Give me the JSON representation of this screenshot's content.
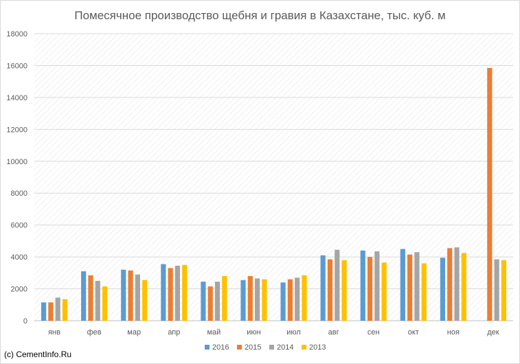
{
  "chart_data": {
    "type": "bar",
    "title": "Помесячное производство щебня и гравия в Казахстане, тыс. куб. м",
    "categories": [
      "янв",
      "фев",
      "мар",
      "апр",
      "май",
      "июн",
      "июл",
      "авг",
      "сен",
      "окт",
      "ноя",
      "дек"
    ],
    "series": [
      {
        "name": "2016",
        "color": "#5b9bd5",
        "values": [
          1150,
          3100,
          3200,
          3550,
          2450,
          2550,
          2400,
          4100,
          4400,
          4500,
          3950,
          null
        ]
      },
      {
        "name": "2015",
        "color": "#ed7d31",
        "values": [
          1150,
          2850,
          3150,
          3300,
          2150,
          2800,
          2600,
          3850,
          4000,
          4150,
          4550,
          15850
        ]
      },
      {
        "name": "2014",
        "color": "#a5a5a5",
        "values": [
          1450,
          2500,
          2900,
          3450,
          2450,
          2650,
          2700,
          4450,
          4350,
          4300,
          4600,
          3850
        ]
      },
      {
        "name": "2013",
        "color": "#ffc000",
        "values": [
          1350,
          2150,
          2550,
          3500,
          2800,
          2600,
          2850,
          3800,
          3650,
          3600,
          4250,
          3800
        ]
      }
    ],
    "ylim": [
      0,
      18000
    ],
    "yticks": [
      0,
      2000,
      4000,
      6000,
      8000,
      10000,
      12000,
      14000,
      16000,
      18000
    ],
    "grid": true,
    "legend": "bottom"
  },
  "footer": {
    "copyright": "(c) CementInfo.Ru"
  }
}
